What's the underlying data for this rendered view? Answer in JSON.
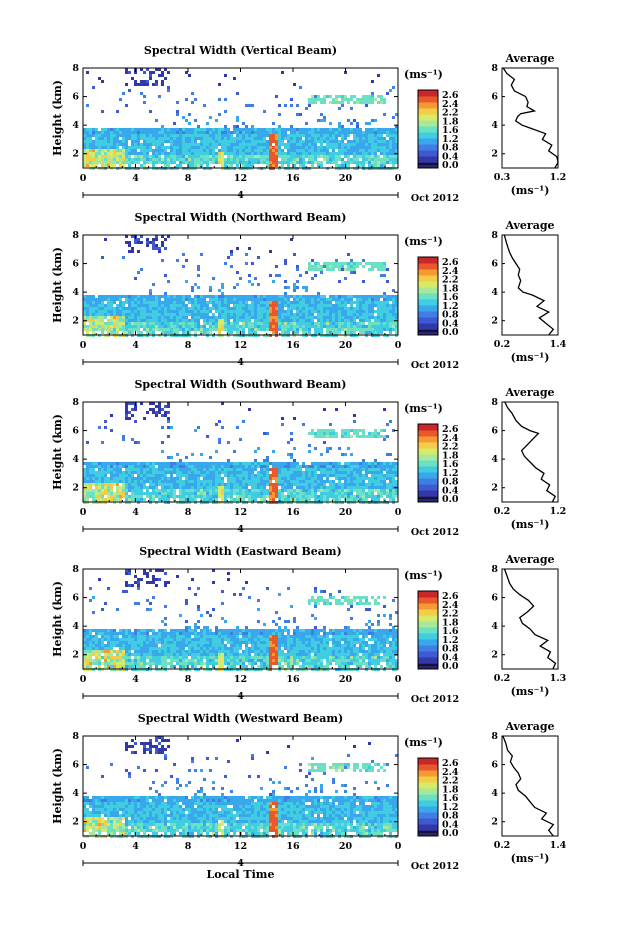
{
  "colormap": [
    "#27256e",
    "#3338a8",
    "#3f59d3",
    "#3f7fe3",
    "#39a7ec",
    "#40cde2",
    "#6ce0c2",
    "#a7e89a",
    "#d8ea6a",
    "#f3cd48",
    "#f59a33",
    "#e8582b",
    "#c8282a"
  ],
  "xlabel": "Local Time",
  "panels": [
    {
      "title": "Spectral Width (Vertical Beam)",
      "ylabel": "Height (km)",
      "x_ticks": [
        "0",
        "4",
        "8",
        "12",
        "16",
        "20",
        "0"
      ],
      "y_ticks": [
        "2",
        "4",
        "6",
        "8"
      ],
      "day_label": "4",
      "date_label": "Oct 2012",
      "colorbar_unit": "(ms⁻¹)",
      "colorbar_ticks": [
        "2.6",
        "2.4",
        "2.2",
        "1.8",
        "1.6",
        "1.2",
        "0.8",
        "0.4",
        "0.0"
      ],
      "profile": {
        "title": "Average",
        "x_ticks": [
          "0.3",
          "1.2"
        ],
        "y_ticks": [
          "2",
          "4",
          "6",
          "8"
        ],
        "xlabel": "(ms⁻¹)",
        "xlim": [
          0.3,
          1.2
        ],
        "points": [
          [
            1.15,
            1.0
          ],
          [
            1.2,
            1.4
          ],
          [
            1.18,
            1.8
          ],
          [
            1.05,
            2.2
          ],
          [
            1.1,
            2.6
          ],
          [
            0.95,
            3.0
          ],
          [
            1.0,
            3.4
          ],
          [
            0.75,
            3.8
          ],
          [
            0.62,
            4.0
          ],
          [
            0.52,
            4.3
          ],
          [
            0.55,
            4.6
          ],
          [
            0.6,
            4.8
          ],
          [
            0.82,
            5.0
          ],
          [
            0.7,
            5.3
          ],
          [
            0.72,
            5.6
          ],
          [
            0.68,
            6.0
          ],
          [
            0.5,
            6.4
          ],
          [
            0.45,
            6.8
          ],
          [
            0.5,
            7.2
          ],
          [
            0.38,
            7.6
          ],
          [
            0.32,
            8.0
          ]
        ]
      }
    },
    {
      "title": "Spectral Width (Northward Beam)",
      "ylabel": "Height (km)",
      "x_ticks": [
        "0",
        "4",
        "8",
        "12",
        "16",
        "20",
        "0"
      ],
      "y_ticks": [
        "2",
        "4",
        "6",
        "8"
      ],
      "day_label": "4",
      "date_label": "Oct 2012",
      "colorbar_unit": "(ms⁻¹)",
      "colorbar_ticks": [
        "2.6",
        "2.4",
        "2.2",
        "1.8",
        "1.6",
        "1.2",
        "0.8",
        "0.4",
        "0.0"
      ],
      "profile": {
        "title": "Average",
        "x_ticks": [
          "0.2",
          "1.4"
        ],
        "y_ticks": [
          "2",
          "4",
          "6",
          "8"
        ],
        "xlabel": "(ms⁻¹)",
        "xlim": [
          0.2,
          1.4
        ],
        "points": [
          [
            1.2,
            1.0
          ],
          [
            1.3,
            1.4
          ],
          [
            1.15,
            1.8
          ],
          [
            1.0,
            2.2
          ],
          [
            1.2,
            2.6
          ],
          [
            0.95,
            3.0
          ],
          [
            1.1,
            3.4
          ],
          [
            0.85,
            3.8
          ],
          [
            0.65,
            4.0
          ],
          [
            0.55,
            4.3
          ],
          [
            0.6,
            4.8
          ],
          [
            0.55,
            5.2
          ],
          [
            0.58,
            5.6
          ],
          [
            0.5,
            6.0
          ],
          [
            0.42,
            6.4
          ],
          [
            0.36,
            6.8
          ],
          [
            0.3,
            7.4
          ],
          [
            0.25,
            8.0
          ]
        ]
      }
    },
    {
      "title": "Spectral Width (Southward Beam)",
      "ylabel": "Height (km)",
      "x_ticks": [
        "0",
        "4",
        "8",
        "12",
        "16",
        "20",
        "0"
      ],
      "y_ticks": [
        "2",
        "4",
        "6",
        "8"
      ],
      "day_label": "4",
      "date_label": "Oct 2012",
      "colorbar_unit": "(ms⁻¹)",
      "colorbar_ticks": [
        "2.6",
        "2.4",
        "2.2",
        "1.8",
        "1.6",
        "1.2",
        "0.8",
        "0.4",
        "0.0"
      ],
      "profile": {
        "title": "Average",
        "x_ticks": [
          "0.2",
          "1.2"
        ],
        "y_ticks": [
          "2",
          "4",
          "6",
          "8"
        ],
        "xlabel": "(ms⁻¹)",
        "xlim": [
          0.2,
          1.2
        ],
        "points": [
          [
            1.1,
            1.0
          ],
          [
            1.15,
            1.4
          ],
          [
            1.0,
            1.8
          ],
          [
            1.05,
            2.2
          ],
          [
            0.9,
            2.6
          ],
          [
            0.95,
            3.0
          ],
          [
            0.8,
            3.4
          ],
          [
            0.7,
            3.8
          ],
          [
            0.6,
            4.2
          ],
          [
            0.55,
            4.6
          ],
          [
            0.65,
            5.0
          ],
          [
            0.75,
            5.4
          ],
          [
            0.85,
            5.8
          ],
          [
            0.7,
            6.0
          ],
          [
            0.55,
            6.3
          ],
          [
            0.45,
            6.7
          ],
          [
            0.38,
            7.2
          ],
          [
            0.3,
            7.6
          ],
          [
            0.25,
            8.0
          ]
        ]
      }
    },
    {
      "title": "Spectral Width (Eastward Beam)",
      "ylabel": "Height (km)",
      "x_ticks": [
        "0",
        "4",
        "8",
        "12",
        "16",
        "20",
        "0"
      ],
      "y_ticks": [
        "2",
        "4",
        "6",
        "8"
      ],
      "day_label": "4",
      "date_label": "Oct 2012",
      "colorbar_unit": "(ms⁻¹)",
      "colorbar_ticks": [
        "2.6",
        "2.4",
        "2.2",
        "1.8",
        "1.6",
        "1.2",
        "0.8",
        "0.4",
        "0.0"
      ],
      "profile": {
        "title": "Average",
        "x_ticks": [
          "0.2",
          "1.3"
        ],
        "y_ticks": [
          "2",
          "4",
          "6",
          "8"
        ],
        "xlabel": "(ms⁻¹)",
        "xlim": [
          0.2,
          1.3
        ],
        "points": [
          [
            1.2,
            1.0
          ],
          [
            1.25,
            1.4
          ],
          [
            1.1,
            1.8
          ],
          [
            1.15,
            2.2
          ],
          [
            0.95,
            2.6
          ],
          [
            1.1,
            3.0
          ],
          [
            0.85,
            3.4
          ],
          [
            0.75,
            3.8
          ],
          [
            0.6,
            4.2
          ],
          [
            0.55,
            4.6
          ],
          [
            0.7,
            5.0
          ],
          [
            0.82,
            5.4
          ],
          [
            0.72,
            5.8
          ],
          [
            0.55,
            6.2
          ],
          [
            0.42,
            6.6
          ],
          [
            0.35,
            7.0
          ],
          [
            0.3,
            7.5
          ],
          [
            0.25,
            8.0
          ]
        ]
      }
    },
    {
      "title": "Spectral Width (Westward Beam)",
      "ylabel": "Height (km)",
      "x_ticks": [
        "0",
        "4",
        "8",
        "12",
        "16",
        "20",
        "0"
      ],
      "y_ticks": [
        "2",
        "4",
        "6",
        "8"
      ],
      "day_label": "4",
      "date_label": "Oct 2012",
      "colorbar_unit": "(ms⁻¹)",
      "colorbar_ticks": [
        "2.6",
        "2.4",
        "2.2",
        "1.8",
        "1.6",
        "1.2",
        "0.8",
        "0.4",
        "0.0"
      ],
      "profile": {
        "title": "Average",
        "x_ticks": [
          "0.2",
          "1.4"
        ],
        "y_ticks": [
          "2",
          "4",
          "6",
          "8"
        ],
        "xlabel": "(ms⁻¹)",
        "xlim": [
          0.2,
          1.4
        ],
        "points": [
          [
            1.3,
            1.0
          ],
          [
            1.2,
            1.4
          ],
          [
            1.3,
            1.8
          ],
          [
            1.05,
            2.2
          ],
          [
            1.15,
            2.6
          ],
          [
            0.9,
            3.0
          ],
          [
            0.8,
            3.4
          ],
          [
            0.7,
            3.8
          ],
          [
            0.55,
            4.2
          ],
          [
            0.5,
            4.6
          ],
          [
            0.6,
            5.0
          ],
          [
            0.55,
            5.4
          ],
          [
            0.45,
            5.8
          ],
          [
            0.38,
            6.2
          ],
          [
            0.42,
            6.6
          ],
          [
            0.32,
            7.0
          ],
          [
            0.28,
            7.5
          ],
          [
            0.22,
            8.0
          ]
        ]
      }
    }
  ],
  "chart_data": {
    "type": "heatmap",
    "title": "Spectral Width",
    "xlabel": "Local Time",
    "ylabel": "Height (km)",
    "xlim": [
      0,
      24
    ],
    "ylim": [
      1,
      8
    ],
    "colorbar_label": "(ms⁻¹)",
    "colorbar_range": [
      0.0,
      2.6
    ],
    "panels": [
      "Vertical Beam",
      "Northward Beam",
      "Southward Beam",
      "Eastward Beam",
      "Westward Beam"
    ],
    "average_profiles": [
      {
        "name": "Vertical Beam",
        "xlim": [
          0.3,
          1.2
        ]
      },
      {
        "name": "Northward Beam",
        "xlim": [
          0.2,
          1.4
        ]
      },
      {
        "name": "Southward Beam",
        "xlim": [
          0.2,
          1.2
        ]
      },
      {
        "name": "Eastward Beam",
        "xlim": [
          0.2,
          1.3
        ]
      },
      {
        "name": "Westward Beam",
        "xlim": [
          0.2,
          1.4
        ]
      }
    ]
  }
}
